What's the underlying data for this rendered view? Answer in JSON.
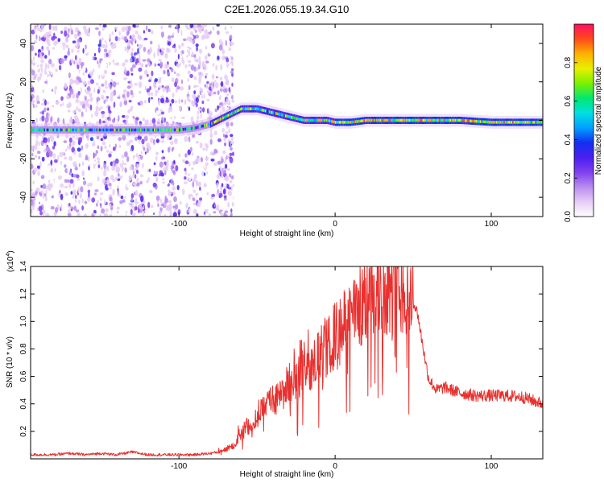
{
  "figure_title": "C2E1.2026.055.19.34.G10",
  "colors": {
    "snr_line": "#e8312f",
    "colorbar_stops": [
      "#ffffff",
      "#e6ccf5",
      "#b98bee",
      "#7f3ff0",
      "#4a1ff0",
      "#1230f0",
      "#00a0ff",
      "#00e0e0",
      "#00e870",
      "#7cf000",
      "#e8f000",
      "#ffb000",
      "#ff4a1a",
      "#ff1060"
    ]
  },
  "chart_data": [
    {
      "type": "heatmap",
      "title": "C2E1.2026.055.19.34.G10",
      "xlabel": "Height of straight line (km)",
      "ylabel": "Frequency (Hz)",
      "xlim": [
        -195,
        133
      ],
      "ylim": [
        -50,
        50
      ],
      "xticks": [
        -100,
        0,
        100
      ],
      "xtick_labels": [
        "-100",
        "0",
        "100"
      ],
      "yticks": [
        -40,
        -20,
        0,
        20,
        40
      ],
      "ytick_labels": [
        "-40",
        "-20",
        "0",
        "20",
        "40"
      ],
      "ridge_x": [
        -195,
        -170,
        -150,
        -130,
        -110,
        -100,
        -90,
        -80,
        -75,
        -70,
        -65,
        -60,
        -55,
        -50,
        -45,
        -40,
        -35,
        -30,
        -25,
        -20,
        -15,
        -10,
        -5,
        0,
        10,
        20,
        40,
        60,
        80,
        100,
        115,
        133
      ],
      "ridge_y": [
        -5,
        -5,
        -5,
        -5,
        -5,
        -5,
        -4,
        -2,
        0,
        2,
        4,
        6,
        6,
        6,
        5,
        4,
        3,
        2,
        1,
        0,
        0,
        0,
        0,
        -1,
        -1,
        0,
        0,
        0,
        0,
        -1,
        -1,
        -1
      ],
      "colorbar": {
        "label": "Normalized spectral amplitude",
        "range": [
          0.0,
          1.0
        ],
        "ticks": [
          0.0,
          0.2,
          0.4,
          0.6,
          0.8
        ],
        "tick_labels": [
          "0.0",
          "0.2",
          "0.4",
          "0.6",
          "0.8"
        ]
      }
    },
    {
      "type": "line",
      "xlabel": "Height of straight line (km)",
      "ylabel": "SNR (10 * v/v)",
      "scale_label_base": "(x10",
      "scale_label_exp": "4",
      "scale_label_close": ")",
      "xlim": [
        -195,
        133
      ],
      "ylim": [
        0,
        1.4
      ],
      "xticks": [
        -100,
        0,
        100
      ],
      "xtick_labels": [
        "-100",
        "0",
        "100"
      ],
      "yticks": [
        0.2,
        0.4,
        0.6,
        0.8,
        1.0,
        1.2,
        1.4
      ],
      "ytick_labels": [
        "0.2",
        "0.4",
        "0.6",
        "0.8",
        "1.0",
        "1.2",
        "1.4"
      ],
      "envelope_x": [
        -195,
        -180,
        -170,
        -160,
        -150,
        -140,
        -130,
        -120,
        -110,
        -100,
        -90,
        -80,
        -75,
        -70,
        -65,
        -60,
        -55,
        -50,
        -45,
        -40,
        -35,
        -30,
        -25,
        -20,
        -15,
        -10,
        -5,
        0,
        5,
        10,
        15,
        20,
        25,
        30,
        35,
        40,
        45,
        50,
        53,
        55,
        58,
        60,
        65,
        70,
        80,
        90,
        100,
        110,
        120,
        133
      ],
      "envelope_y": [
        0.03,
        0.03,
        0.04,
        0.03,
        0.04,
        0.03,
        0.05,
        0.03,
        0.03,
        0.03,
        0.03,
        0.04,
        0.05,
        0.07,
        0.1,
        0.2,
        0.25,
        0.3,
        0.4,
        0.42,
        0.45,
        0.55,
        0.6,
        0.6,
        0.7,
        0.75,
        0.8,
        0.9,
        0.95,
        1.05,
        1.1,
        1.15,
        1.2,
        1.22,
        1.25,
        1.25,
        1.22,
        1.15,
        1.05,
        0.9,
        0.7,
        0.58,
        0.5,
        0.52,
        0.48,
        0.46,
        0.46,
        0.46,
        0.45,
        0.4
      ]
    }
  ]
}
